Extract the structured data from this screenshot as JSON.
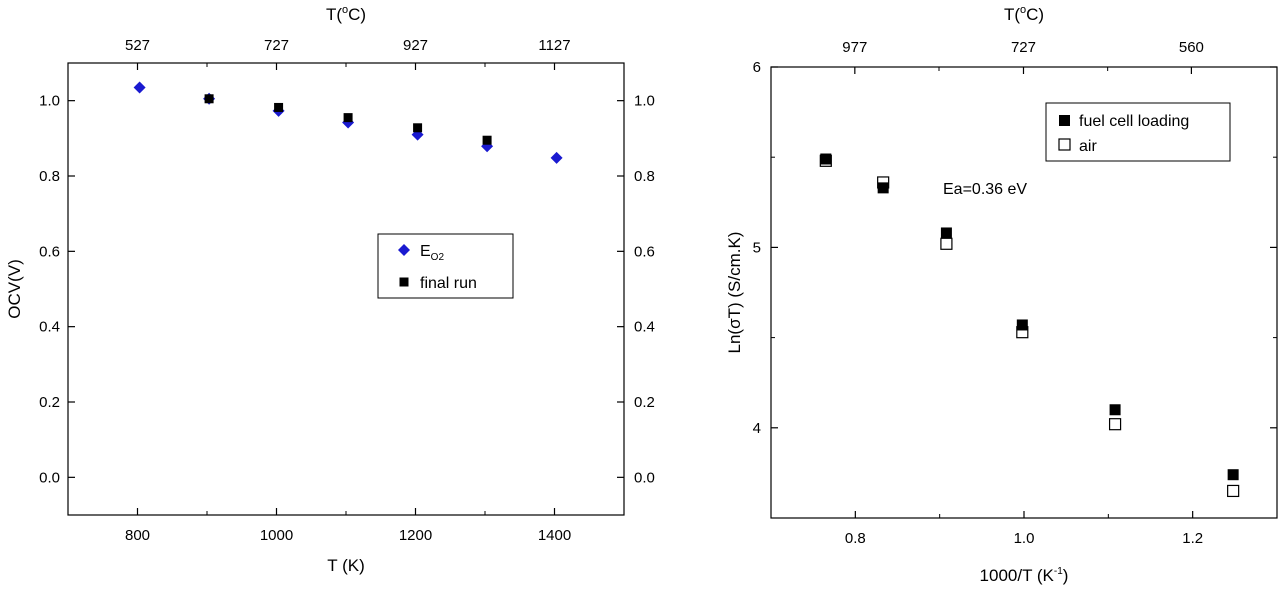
{
  "colors": {
    "ink": "#000000",
    "eo2_marker": "#1a1ad0",
    "final_run_marker": "#000000",
    "background": "#ffffff"
  },
  "chart_data": [
    {
      "type": "scatter",
      "xlabel": "T (K)",
      "ylabel": "OCV(V)",
      "top_xlabel": "T(°C)",
      "xlim": [
        700,
        1500
      ],
      "ylim": [
        -0.1,
        1.1
      ],
      "xticks": [
        800,
        1000,
        1200,
        1400
      ],
      "x_minor_ticks": [
        900,
        1100,
        1300
      ],
      "yticks": [
        0.0,
        0.2,
        0.4,
        0.6,
        0.8,
        1.0
      ],
      "ytick_labels": [
        "0.0",
        "0.2",
        "0.4",
        "0.6",
        "0.8",
        "1.0"
      ],
      "right_yticks": [
        0.0,
        0.2,
        0.4,
        0.6,
        0.8,
        1.0
      ],
      "right_ytick_labels": [
        "0.0",
        "0.2",
        "0.4",
        "0.6",
        "0.8",
        "1.0"
      ],
      "top_ticks": [
        {
          "x": 800,
          "label": "527"
        },
        {
          "x": 1000,
          "label": "727"
        },
        {
          "x": 1200,
          "label": "927"
        },
        {
          "x": 1400,
          "label": "1127"
        }
      ],
      "top_minor_ticks": [
        900,
        1100,
        1300
      ],
      "legend": {
        "placement": "center-right",
        "entries": [
          {
            "label_main": "E",
            "label_sub": "O2",
            "marker": "diamond"
          },
          {
            "label_main": "final run",
            "label_sub": "",
            "marker": "square"
          }
        ]
      },
      "series": [
        {
          "marker": "diamond",
          "color": "#1a1ad0",
          "x": [
            803,
            903,
            1003,
            1103,
            1203,
            1303,
            1403
          ],
          "y": [
            1.035,
            1.005,
            0.973,
            0.942,
            0.91,
            0.879,
            0.848
          ]
        },
        {
          "marker": "square",
          "color": "#000000",
          "x": [
            903,
            1003,
            1103,
            1203,
            1303
          ],
          "y": [
            1.005,
            0.982,
            0.955,
            0.928,
            0.895
          ]
        }
      ]
    },
    {
      "type": "scatter",
      "xlabel_main": "1000/T (K",
      "xlabel_sup": "-1",
      "xlabel_end": ")",
      "ylabel": "Ln(σT) (S/cm.K)",
      "top_xlabel": "T(°C)",
      "xlim": [
        0.7,
        1.3
      ],
      "ylim": [
        3.5,
        6.0
      ],
      "xticks": [
        0.8,
        1.0,
        1.2
      ],
      "xtick_labels": [
        "0.8",
        "1.0",
        "1.2"
      ],
      "x_minor_ticks": [
        0.9,
        1.1
      ],
      "yticks": [
        4,
        5,
        6
      ],
      "ytick_labels": [
        "4",
        "5",
        "6"
      ],
      "y_minor_ticks": [
        4.5,
        5.5
      ],
      "top_ticks": [
        {
          "x": 0.7994,
          "label": "977"
        },
        {
          "x": 0.9994,
          "label": "727"
        },
        {
          "x": 1.1985,
          "label": "560"
        }
      ],
      "top_minor_ticks": [
        0.8992,
        1.0992
      ],
      "annotation": "Ea=0.36 eV",
      "legend": {
        "placement": "top-right",
        "entries": [
          {
            "label": "fuel cell loading",
            "marker": "filled-square"
          },
          {
            "label": "air",
            "marker": "open-square"
          }
        ]
      },
      "series": [
        {
          "marker": "filled-square",
          "label": "fuel cell loading",
          "x": [
            0.765,
            0.833,
            0.908,
            0.998,
            1.108,
            1.248
          ],
          "y": [
            5.49,
            5.33,
            5.08,
            4.57,
            4.1,
            3.74
          ]
        },
        {
          "marker": "open-square",
          "label": "air",
          "x": [
            0.765,
            0.833,
            0.908,
            0.998,
            1.108,
            1.248
          ],
          "y": [
            5.48,
            5.36,
            5.02,
            4.53,
            4.02,
            3.65
          ]
        }
      ]
    }
  ]
}
